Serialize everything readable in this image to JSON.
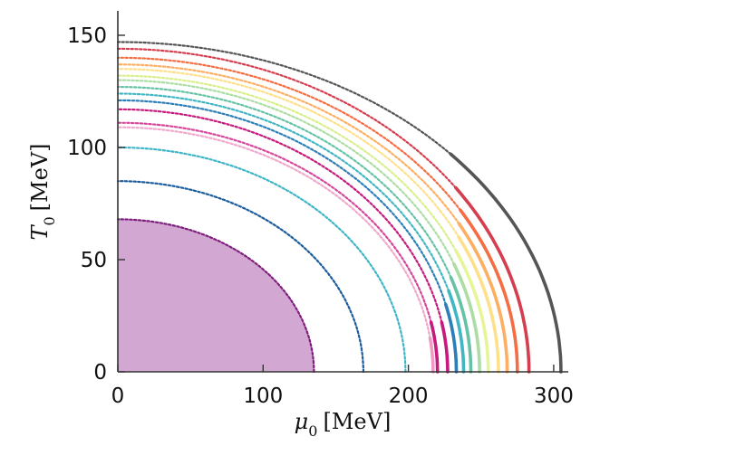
{
  "chart_data": {
    "type": "line",
    "xlabel": {
      "symbol": "μ",
      "sub": "0",
      "unit": "[MeV]"
    },
    "ylabel": {
      "symbol": "T",
      "sub": "0",
      "unit": "[MeV]"
    },
    "xlim": [
      0,
      310
    ],
    "ylim": [
      0,
      160
    ],
    "xticks": [
      0,
      100,
      200,
      300
    ],
    "yticks": [
      0,
      50,
      100,
      150
    ],
    "grid": false,
    "legend": "none",
    "filled_region": {
      "color": "#d2a8d2",
      "edge_color": "#7e1f7e",
      "mu0": 135,
      "T0": 68
    },
    "curves": [
      {
        "color": "#7e1f7e",
        "mu0": 135,
        "T0": 68,
        "style": "dotted"
      },
      {
        "color": "#1a5c9c",
        "mu0": 169,
        "T0": 85,
        "style": "dotted"
      },
      {
        "color": "#3fb6c8",
        "mu0": 198,
        "T0": 100,
        "style": "dotted"
      },
      {
        "color": "#f0a8cc",
        "mu0": 217,
        "T0": 109,
        "style": "dotted",
        "solid_from_mu": 219,
        "solid_from_T": 15,
        "solid_color": "#ef9bc4"
      },
      {
        "color": "#d6479b",
        "mu0": 220,
        "T0": 111,
        "style": "dotted",
        "solid_from_mu": 229,
        "solid_from_T": 22,
        "solid_color": "#c51b7d"
      },
      {
        "color": "#c51b7d",
        "mu0": 227,
        "T0": 117,
        "style": "dotted",
        "solid_from_mu": 229,
        "solid_from_T": 22,
        "solid_color": "#c51b7d"
      },
      {
        "color": "#2c7fb8",
        "mu0": 233,
        "T0": 121,
        "style": "dotted",
        "solid_from_mu": 232,
        "solid_from_T": 30,
        "solid_color": "#2c7fb8"
      },
      {
        "color": "#41b6c4",
        "mu0": 238,
        "T0": 124,
        "style": "dotted",
        "solid_from_mu": 236,
        "solid_from_T": 36,
        "solid_color": "#41b6c4"
      },
      {
        "color": "#66c2a5",
        "mu0": 243,
        "T0": 127,
        "style": "dotted",
        "solid_from_mu": 240,
        "solid_from_T": 42,
        "solid_color": "#66c2a5"
      },
      {
        "color": "#abdda4",
        "mu0": 249,
        "T0": 130,
        "style": "dotted",
        "solid_from_mu": 244,
        "solid_from_T": 48,
        "solid_color": "#abdda4"
      },
      {
        "color": "#d9ef8b",
        "mu0": 255,
        "T0": 132,
        "style": "dotted",
        "solid_from_mu": 248,
        "solid_from_T": 54,
        "solid_color": "#e6f598"
      },
      {
        "color": "#fee08b",
        "mu0": 262,
        "T0": 135,
        "style": "dotted",
        "solid_from_mu": 252,
        "solid_from_T": 60,
        "solid_color": "#fee08b"
      },
      {
        "color": "#fdae61",
        "mu0": 268,
        "T0": 137,
        "style": "dotted",
        "solid_from_mu": 256,
        "solid_from_T": 66,
        "solid_color": "#fdae61"
      },
      {
        "color": "#f46d43",
        "mu0": 275,
        "T0": 140,
        "style": "dotted",
        "solid_from_mu": 260,
        "solid_from_T": 72,
        "solid_color": "#f46d43"
      },
      {
        "color": "#d53e4f",
        "mu0": 283,
        "T0": 144,
        "style": "dotted",
        "solid_from_mu": 233,
        "solid_from_T": 82,
        "solid_color": "#d53e4f"
      },
      {
        "color": "#555555",
        "mu0": 305,
        "T0": 147,
        "style": "dotted",
        "solid_from_mu": 215,
        "solid_from_T": 97,
        "solid_color": "#555555"
      }
    ]
  }
}
